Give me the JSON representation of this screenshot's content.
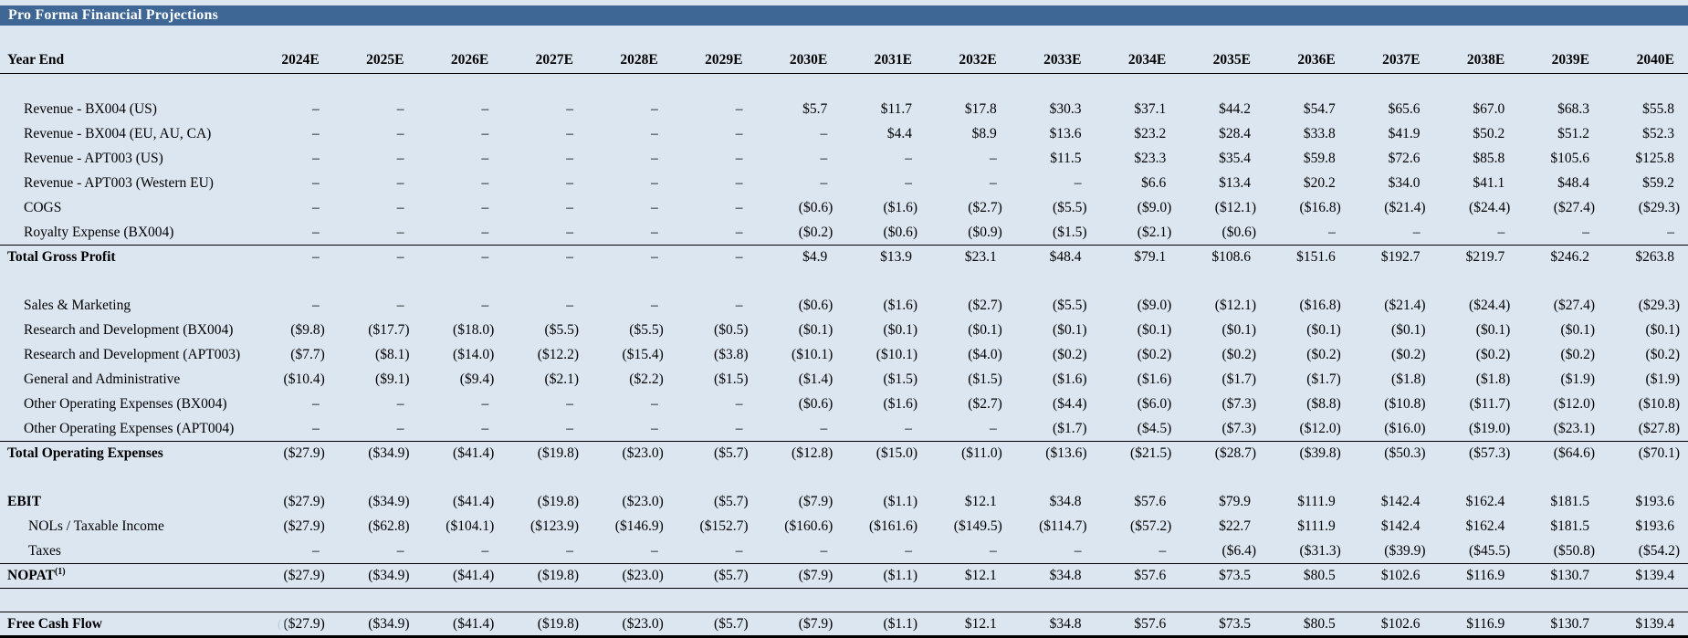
{
  "title": "Pro Forma Financial Projections",
  "colors": {
    "title_bar_bg": "#3E6795",
    "title_bar_text": "#FFFFFF",
    "page_bg": "#DCE6F1",
    "rule": "#000000"
  },
  "table": {
    "header": {
      "label": "Year End",
      "years": [
        "2024E",
        "2025E",
        "2026E",
        "2027E",
        "2028E",
        "2029E",
        "2030E",
        "2031E",
        "2032E",
        "2033E",
        "2034E",
        "2035E",
        "2036E",
        "2037E",
        "2038E",
        "2039E",
        "2040E"
      ]
    },
    "sections": [
      {
        "name": "gross-profit",
        "rows": [
          {
            "label": "Revenue - BX004 (US)",
            "values": [
              "–",
              "–",
              "–",
              "–",
              "–",
              "–",
              "$5.7",
              "$11.7",
              "$17.8",
              "$30.3",
              "$37.1",
              "$44.2",
              "$54.7",
              "$65.6",
              "$67.0",
              "$68.3",
              "$55.8"
            ]
          },
          {
            "label": "Revenue - BX004  (EU, AU, CA)",
            "values": [
              "–",
              "–",
              "–",
              "–",
              "–",
              "–",
              "–",
              "$4.4",
              "$8.9",
              "$13.6",
              "$23.2",
              "$28.4",
              "$33.8",
              "$41.9",
              "$50.2",
              "$51.2",
              "$52.3"
            ]
          },
          {
            "label": "Revenue - APT003 (US)",
            "values": [
              "–",
              "–",
              "–",
              "–",
              "–",
              "–",
              "–",
              "–",
              "–",
              "$11.5",
              "$23.3",
              "$35.4",
              "$59.8",
              "$72.6",
              "$85.8",
              "$105.6",
              "$125.8"
            ]
          },
          {
            "label": "Revenue - APT003 (Western EU)",
            "values": [
              "–",
              "–",
              "–",
              "–",
              "–",
              "–",
              "–",
              "–",
              "–",
              "–",
              "$6.6",
              "$13.4",
              "$20.2",
              "$34.0",
              "$41.1",
              "$48.4",
              "$59.2"
            ]
          },
          {
            "label": "COGS",
            "values": [
              "–",
              "–",
              "–",
              "–",
              "–",
              "–",
              "($0.6)",
              "($1.6)",
              "($2.7)",
              "($5.5)",
              "($9.0)",
              "($12.1)",
              "($16.8)",
              "($21.4)",
              "($24.4)",
              "($27.4)",
              "($29.3)"
            ]
          },
          {
            "label": "Royalty Expense (BX004)",
            "values": [
              "–",
              "–",
              "–",
              "–",
              "–",
              "–",
              "($0.2)",
              "($0.6)",
              "($0.9)",
              "($1.5)",
              "($2.1)",
              "($0.6)",
              "–",
              "–",
              "–",
              "–",
              "–"
            ]
          }
        ],
        "total": {
          "label": "Total Gross Profit",
          "type": "total",
          "values": [
            "–",
            "–",
            "–",
            "–",
            "–",
            "–",
            "$4.9",
            "$13.9",
            "$23.1",
            "$48.4",
            "$79.1",
            "$108.6",
            "$151.6",
            "$192.7",
            "$219.7",
            "$246.2",
            "$263.8"
          ]
        }
      },
      {
        "name": "operating-expenses",
        "rows": [
          {
            "label": "Sales & Marketing",
            "values": [
              "–",
              "–",
              "–",
              "–",
              "–",
              "–",
              "($0.6)",
              "($1.6)",
              "($2.7)",
              "($5.5)",
              "($9.0)",
              "($12.1)",
              "($16.8)",
              "($21.4)",
              "($24.4)",
              "($27.4)",
              "($29.3)"
            ]
          },
          {
            "label": "Research and Development (BX004)",
            "values": [
              "($9.8)",
              "($17.7)",
              "($18.0)",
              "($5.5)",
              "($5.5)",
              "($0.5)",
              "($0.1)",
              "($0.1)",
              "($0.1)",
              "($0.1)",
              "($0.1)",
              "($0.1)",
              "($0.1)",
              "($0.1)",
              "($0.1)",
              "($0.1)",
              "($0.1)"
            ]
          },
          {
            "label": "Research and Development (APT003)",
            "values": [
              "($7.7)",
              "($8.1)",
              "($14.0)",
              "($12.2)",
              "($15.4)",
              "($3.8)",
              "($10.1)",
              "($10.1)",
              "($4.0)",
              "($0.2)",
              "($0.2)",
              "($0.2)",
              "($0.2)",
              "($0.2)",
              "($0.2)",
              "($0.2)",
              "($0.2)"
            ]
          },
          {
            "label": "General and Administrative",
            "values": [
              "($10.4)",
              "($9.1)",
              "($9.4)",
              "($2.1)",
              "($2.2)",
              "($1.5)",
              "($1.4)",
              "($1.5)",
              "($1.5)",
              "($1.6)",
              "($1.6)",
              "($1.7)",
              "($1.7)",
              "($1.8)",
              "($1.8)",
              "($1.9)",
              "($1.9)"
            ]
          },
          {
            "label": "Other Operating Expenses (BX004)",
            "values": [
              "–",
              "–",
              "–",
              "–",
              "–",
              "–",
              "($0.6)",
              "($1.6)",
              "($2.7)",
              "($4.4)",
              "($6.0)",
              "($7.3)",
              "($8.8)",
              "($10.8)",
              "($11.7)",
              "($12.0)",
              "($10.8)"
            ]
          },
          {
            "label": "Other Operating Expenses (APT004)",
            "values": [
              "–",
              "–",
              "–",
              "–",
              "–",
              "–",
              "–",
              "–",
              "–",
              "($1.7)",
              "($4.5)",
              "($7.3)",
              "($12.0)",
              "($16.0)",
              "($19.0)",
              "($23.1)",
              "($27.8)"
            ]
          }
        ],
        "total": {
          "label": "Total Operating Expenses",
          "type": "total",
          "values": [
            "($27.9)",
            "($34.9)",
            "($41.4)",
            "($19.8)",
            "($23.0)",
            "($5.7)",
            "($12.8)",
            "($15.0)",
            "($11.0)",
            "($13.6)",
            "($21.5)",
            "($28.7)",
            "($39.8)",
            "($50.3)",
            "($57.3)",
            "($64.6)",
            "($70.1)"
          ]
        }
      },
      {
        "name": "ebit-nopat",
        "rows": [
          {
            "label": "EBIT",
            "bold": true,
            "values": [
              "($27.9)",
              "($34.9)",
              "($41.4)",
              "($19.8)",
              "($23.0)",
              "($5.7)",
              "($7.9)",
              "($1.1)",
              "$12.1",
              "$34.8",
              "$57.6",
              "$79.9",
              "$111.9",
              "$142.4",
              "$162.4",
              "$181.5",
              "$193.6"
            ]
          },
          {
            "label": "NOLs / Taxable Income",
            "indent": true,
            "values": [
              "($27.9)",
              "($62.8)",
              "($104.1)",
              "($123.9)",
              "($146.9)",
              "($152.7)",
              "($160.6)",
              "($161.6)",
              "($149.5)",
              "($114.7)",
              "($57.2)",
              "$22.7",
              "$111.9",
              "$142.4",
              "$162.4",
              "$181.5",
              "$193.6"
            ]
          },
          {
            "label": "Taxes",
            "indent": true,
            "values": [
              "–",
              "–",
              "–",
              "–",
              "–",
              "–",
              "–",
              "–",
              "–",
              "–",
              "–",
              "($6.4)",
              "($31.3)",
              "($39.9)",
              "($45.5)",
              "($50.8)",
              "($54.2)"
            ]
          }
        ],
        "total": {
          "label": "NOPAT",
          "sup": "(1)",
          "type": "total",
          "underline": true,
          "values": [
            "($27.9)",
            "($34.9)",
            "($41.4)",
            "($19.8)",
            "($23.0)",
            "($5.7)",
            "($7.9)",
            "($1.1)",
            "$12.1",
            "$34.8",
            "$57.6",
            "$73.5",
            "$80.5",
            "$102.6",
            "$116.9",
            "$130.7",
            "$139.4"
          ]
        }
      },
      {
        "name": "free-cash-flow",
        "rows": [],
        "total": {
          "label": "Free Cash Flow",
          "type": "grand",
          "ghost": "(1)",
          "values": [
            "($27.9)",
            "($34.9)",
            "($41.4)",
            "($19.8)",
            "($23.0)",
            "($5.7)",
            "($7.9)",
            "($1.1)",
            "$12.1",
            "$34.8",
            "$57.6",
            "$73.5",
            "$80.5",
            "$102.6",
            "$116.9",
            "$130.7",
            "$139.4"
          ]
        }
      }
    ]
  }
}
